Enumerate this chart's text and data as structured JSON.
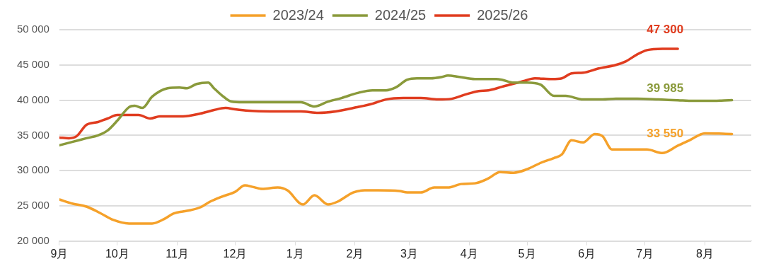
{
  "chart_data": {
    "type": "line",
    "legend": "top",
    "grid": "y",
    "marker": "none",
    "line_style": "solid",
    "xlim": [
      "2024-09-01",
      "2025-08-25"
    ],
    "xticks": [
      {
        "value": "2024-09-01",
        "label": "9月"
      },
      {
        "value": "2024-10-01",
        "label": "10月"
      },
      {
        "value": "2024-11-01",
        "label": "11月"
      },
      {
        "value": "2024-12-01",
        "label": "12月"
      },
      {
        "value": "2025-01-01",
        "label": "1月"
      },
      {
        "value": "2025-02-01",
        "label": "2月"
      },
      {
        "value": "2025-03-01",
        "label": "3月"
      },
      {
        "value": "2025-04-01",
        "label": "4月"
      },
      {
        "value": "2025-05-01",
        "label": "5月"
      },
      {
        "value": "2025-06-01",
        "label": "6月"
      },
      {
        "value": "2025-07-01",
        "label": "7月"
      },
      {
        "value": "2025-08-01",
        "label": "8月"
      }
    ],
    "ylim": [
      20000,
      50000
    ],
    "yticks": [
      {
        "value": 20000,
        "label": "20 000"
      },
      {
        "value": 25000,
        "label": "25 000"
      },
      {
        "value": 30000,
        "label": "30 000"
      },
      {
        "value": 35000,
        "label": "35 000"
      },
      {
        "value": 40000,
        "label": "40 000"
      },
      {
        "value": 45000,
        "label": "45 000"
      },
      {
        "value": 50000,
        "label": "50 000"
      }
    ],
    "series": [
      {
        "name": "2023/24",
        "color": "#f5a12a",
        "x": [
          "2024-09-01",
          "2024-09-08",
          "2024-09-15",
          "2024-09-22",
          "2024-09-29",
          "2024-10-07",
          "2024-10-14",
          "2024-10-19",
          "2024-10-25",
          "2024-10-30",
          "2024-11-08",
          "2024-11-13",
          "2024-11-18",
          "2024-11-24",
          "2024-12-01",
          "2024-12-06",
          "2024-12-10",
          "2024-12-15",
          "2024-12-23",
          "2024-12-28",
          "2025-01-05",
          "2025-01-11",
          "2025-01-18",
          "2025-01-23",
          "2025-01-31",
          "2025-02-06",
          "2025-02-13",
          "2025-02-24",
          "2025-02-28",
          "2025-03-07",
          "2025-03-14",
          "2025-03-21",
          "2025-03-28",
          "2025-04-04",
          "2025-04-11",
          "2025-04-17",
          "2025-04-24",
          "2025-05-01",
          "2025-05-08",
          "2025-05-15",
          "2025-05-19",
          "2025-05-24",
          "2025-05-30",
          "2025-06-05",
          "2025-06-09",
          "2025-06-14",
          "2025-06-20",
          "2025-06-27",
          "2025-07-02",
          "2025-07-10",
          "2025-07-18",
          "2025-07-24",
          "2025-08-01",
          "2025-08-15"
        ],
        "values": [
          25900,
          25300,
          24900,
          24000,
          23000,
          22500,
          22500,
          22500,
          23100,
          23900,
          24400,
          24800,
          25600,
          26300,
          27000,
          27900,
          27700,
          27400,
          27600,
          27200,
          25200,
          26500,
          25200,
          25600,
          26900,
          27200,
          27200,
          27100,
          26900,
          26900,
          27600,
          27600,
          28100,
          28200,
          28900,
          29800,
          29700,
          30200,
          31100,
          31800,
          32300,
          34300,
          34000,
          35200,
          34900,
          33000,
          33000,
          33000,
          33000,
          32500,
          33550,
          34300,
          35300,
          35200
        ],
        "value_labels": [
          null,
          null,
          null,
          null,
          null,
          null,
          null,
          null,
          null,
          null,
          null,
          null,
          null,
          null,
          null,
          null,
          null,
          null,
          null,
          null,
          null,
          null,
          null,
          null,
          null,
          null,
          null,
          null,
          null,
          null,
          null,
          null,
          null,
          null,
          null,
          null,
          null,
          null,
          null,
          null,
          null,
          null,
          null,
          null,
          null,
          null,
          null,
          null,
          null,
          null,
          "33 550",
          null,
          null,
          null
        ]
      },
      {
        "name": "2024/25",
        "color": "#8a9a3b",
        "x": [
          "2024-09-01",
          "2024-09-08",
          "2024-09-15",
          "2024-09-21",
          "2024-09-26",
          "2024-10-01",
          "2024-10-07",
          "2024-10-10",
          "2024-10-14",
          "2024-10-19",
          "2024-10-27",
          "2024-11-02",
          "2024-11-06",
          "2024-11-11",
          "2024-11-17",
          "2024-11-20",
          "2024-11-24",
          "2024-11-29",
          "2024-12-05",
          "2024-12-12",
          "2024-12-19",
          "2024-12-28",
          "2025-01-04",
          "2025-01-11",
          "2025-01-18",
          "2025-01-25",
          "2025-02-02",
          "2025-02-10",
          "2025-02-17",
          "2025-02-22",
          "2025-02-28",
          "2025-03-05",
          "2025-03-12",
          "2025-03-18",
          "2025-03-21",
          "2025-03-27",
          "2025-04-04",
          "2025-04-15",
          "2025-04-18",
          "2025-04-24",
          "2025-05-01",
          "2025-05-08",
          "2025-05-15",
          "2025-05-21",
          "2025-05-30",
          "2025-06-09",
          "2025-06-16",
          "2025-06-27",
          "2025-07-08",
          "2025-07-18",
          "2025-07-26",
          "2025-08-03",
          "2025-08-15"
        ],
        "values": [
          33600,
          34100,
          34600,
          35000,
          35700,
          37100,
          39000,
          39200,
          38900,
          40500,
          41700,
          41800,
          41700,
          42300,
          42500,
          41700,
          40700,
          39800,
          39700,
          39700,
          39700,
          39700,
          39700,
          39100,
          39800,
          40300,
          41000,
          41400,
          41400,
          41800,
          42900,
          43100,
          43100,
          43300,
          43500,
          43300,
          43000,
          43000,
          42900,
          42500,
          42500,
          42200,
          40600,
          40600,
          40100,
          40100,
          40200,
          40200,
          40100,
          39985,
          39900,
          39900,
          40000
        ],
        "value_labels": [
          null,
          null,
          null,
          null,
          null,
          null,
          null,
          null,
          null,
          null,
          null,
          null,
          null,
          null,
          null,
          null,
          null,
          null,
          null,
          null,
          null,
          null,
          null,
          null,
          null,
          null,
          null,
          null,
          null,
          null,
          null,
          null,
          null,
          null,
          null,
          null,
          null,
          null,
          null,
          null,
          null,
          null,
          null,
          null,
          null,
          null,
          null,
          null,
          null,
          "39 985",
          null,
          null,
          null
        ]
      },
      {
        "name": "2025/26",
        "color": "#e03c1f",
        "x": [
          "2024-09-01",
          "2024-09-06",
          "2024-09-10",
          "2024-09-15",
          "2024-09-21",
          "2024-09-26",
          "2024-10-01",
          "2024-10-07",
          "2024-10-12",
          "2024-10-18",
          "2024-10-23",
          "2024-11-04",
          "2024-11-13",
          "2024-11-20",
          "2024-11-26",
          "2024-12-01",
          "2024-12-08",
          "2024-12-19",
          "2025-01-04",
          "2025-01-13",
          "2025-01-22",
          "2025-02-02",
          "2025-02-10",
          "2025-02-17",
          "2025-02-26",
          "2025-03-07",
          "2025-03-16",
          "2025-03-23",
          "2025-03-30",
          "2025-04-06",
          "2025-04-11",
          "2025-04-18",
          "2025-04-29",
          "2025-05-05",
          "2025-05-14",
          "2025-05-19",
          "2025-05-24",
          "2025-05-30",
          "2025-06-07",
          "2025-06-16",
          "2025-06-21",
          "2025-06-27",
          "2025-07-02",
          "2025-07-10",
          "2025-07-18"
        ],
        "values": [
          34700,
          34600,
          34900,
          36500,
          36900,
          37400,
          37900,
          37900,
          37900,
          37400,
          37700,
          37700,
          38100,
          38600,
          38900,
          38700,
          38500,
          38400,
          38400,
          38200,
          38400,
          39000,
          39500,
          40100,
          40300,
          40300,
          40100,
          40200,
          40800,
          41300,
          41400,
          41900,
          42700,
          43100,
          43000,
          43100,
          43800,
          43900,
          44500,
          45000,
          45500,
          46500,
          47100,
          47300,
          47300
        ],
        "value_labels": [
          null,
          null,
          null,
          null,
          null,
          null,
          null,
          null,
          null,
          null,
          null,
          null,
          null,
          null,
          null,
          null,
          null,
          null,
          null,
          null,
          null,
          null,
          null,
          null,
          null,
          null,
          null,
          null,
          null,
          null,
          null,
          null,
          null,
          null,
          null,
          null,
          null,
          null,
          null,
          null,
          null,
          null,
          null,
          null,
          "47 300"
        ]
      }
    ]
  }
}
